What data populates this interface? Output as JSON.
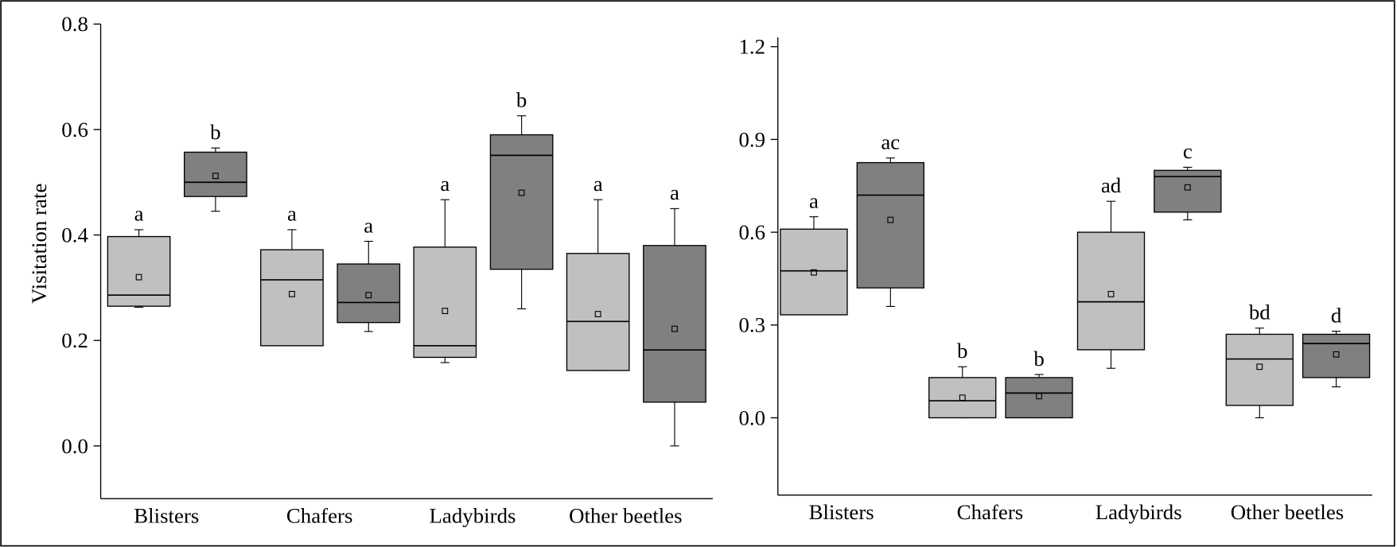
{
  "chart_data": [
    {
      "type": "box",
      "ylabel": "Visitation rate",
      "categories": [
        "Blisters",
        "Chafers",
        "Ladybirds",
        "Other beetles"
      ],
      "ylim": [
        -0.1,
        0.8
      ],
      "yticks": [
        {
          "value": 0,
          "label": "0.0"
        },
        0.2,
        0.4,
        0.6,
        0.8
      ],
      "series": [
        {
          "color": "#c0c0c0",
          "values": [
            {
              "low": 0.263,
              "q1": 0.265,
              "median": 0.286,
              "q3": 0.397,
              "high": 0.41,
              "mean": 0.32
            },
            {
              "low": 0.19,
              "q1": 0.19,
              "median": 0.315,
              "q3": 0.372,
              "high": 0.41,
              "mean": 0.288
            },
            {
              "low": 0.158,
              "q1": 0.168,
              "median": 0.19,
              "q3": 0.377,
              "high": 0.467,
              "mean": 0.256
            },
            {
              "low": 0.143,
              "q1": 0.143,
              "median": 0.236,
              "q3": 0.365,
              "high": 0.467,
              "mean": 0.25
            }
          ],
          "labels": [
            "a",
            "a",
            "a",
            "a"
          ]
        },
        {
          "color": "#808080",
          "values": [
            {
              "low": 0.445,
              "q1": 0.473,
              "median": 0.5,
              "q3": 0.557,
              "high": 0.565,
              "mean": 0.512
            },
            {
              "low": 0.217,
              "q1": 0.234,
              "median": 0.272,
              "q3": 0.345,
              "high": 0.388,
              "mean": 0.286
            },
            {
              "low": 0.26,
              "q1": 0.335,
              "median": 0.551,
              "q3": 0.59,
              "high": 0.626,
              "mean": 0.48
            },
            {
              "low": 0.0,
              "q1": 0.083,
              "median": 0.182,
              "q3": 0.38,
              "high": 0.45,
              "mean": 0.222
            }
          ],
          "labels": [
            "b",
            "a",
            "b",
            "a"
          ]
        }
      ]
    },
    {
      "type": "box",
      "categories": [
        "Blisters",
        "Chafers",
        "Ladybirds",
        "Other beetles"
      ],
      "ylim": [
        -0.25,
        1.23
      ],
      "yticks": [
        {
          "value": 0,
          "label": "0.0"
        },
        0.3,
        0.6,
        0.9,
        1.2
      ],
      "series": [
        {
          "color": "#c0c0c0",
          "values": [
            {
              "low": 0.333,
              "q1": 0.333,
              "median": 0.475,
              "q3": 0.61,
              "high": 0.65,
              "mean": 0.47
            },
            {
              "low": 0.0,
              "q1": 0.0,
              "median": 0.055,
              "q3": 0.13,
              "high": 0.165,
              "mean": 0.065
            },
            {
              "low": 0.16,
              "q1": 0.22,
              "median": 0.375,
              "q3": 0.6,
              "high": 0.7,
              "mean": 0.4
            },
            {
              "low": 0.0,
              "q1": 0.04,
              "median": 0.19,
              "q3": 0.27,
              "high": 0.29,
              "mean": 0.165
            }
          ],
          "labels": [
            "a",
            "b",
            "ad",
            "bd"
          ]
        },
        {
          "color": "#808080",
          "values": [
            {
              "low": 0.36,
              "q1": 0.42,
              "median": 0.72,
              "q3": 0.825,
              "high": 0.84,
              "mean": 0.64
            },
            {
              "low": 0.0,
              "q1": 0.0,
              "median": 0.08,
              "q3": 0.13,
              "high": 0.14,
              "mean": 0.07
            },
            {
              "low": 0.64,
              "q1": 0.665,
              "median": 0.78,
              "q3": 0.8,
              "high": 0.81,
              "mean": 0.745
            },
            {
              "low": 0.1,
              "q1": 0.13,
              "median": 0.24,
              "q3": 0.27,
              "high": 0.28,
              "mean": 0.205
            }
          ],
          "labels": [
            "ac",
            "b",
            "c",
            "d"
          ]
        }
      ]
    }
  ]
}
